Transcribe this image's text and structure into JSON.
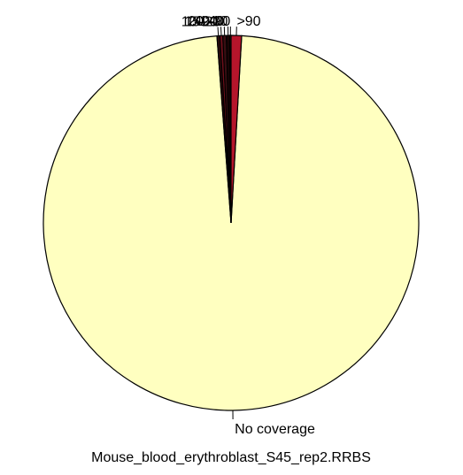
{
  "chart_data": {
    "type": "pie",
    "title": "Mouse_blood_erythroblast_S45_rep2.RRBS",
    "start_angle": "12 o'clock, clockwise",
    "slices": [
      {
        "label": "No coverage",
        "value": 97.9,
        "color": "#FFFFC0"
      },
      {
        "label": "10-20",
        "value": 0.25,
        "color": "#2B0B0B"
      },
      {
        "label": "15-20",
        "value": 0.25,
        "color": "#6E0F1A"
      },
      {
        "label": "20-40",
        "value": 0.3,
        "color": "#3A0E12"
      },
      {
        "label": "1-10",
        "value": 0.3,
        "color": "#1A0405"
      },
      {
        "label": "40-90",
        "value": 0.1,
        "color": "#C07020"
      },
      {
        "label": ">90",
        "value": 0.9,
        "color": "#B5152B"
      }
    ],
    "legend": "none"
  }
}
